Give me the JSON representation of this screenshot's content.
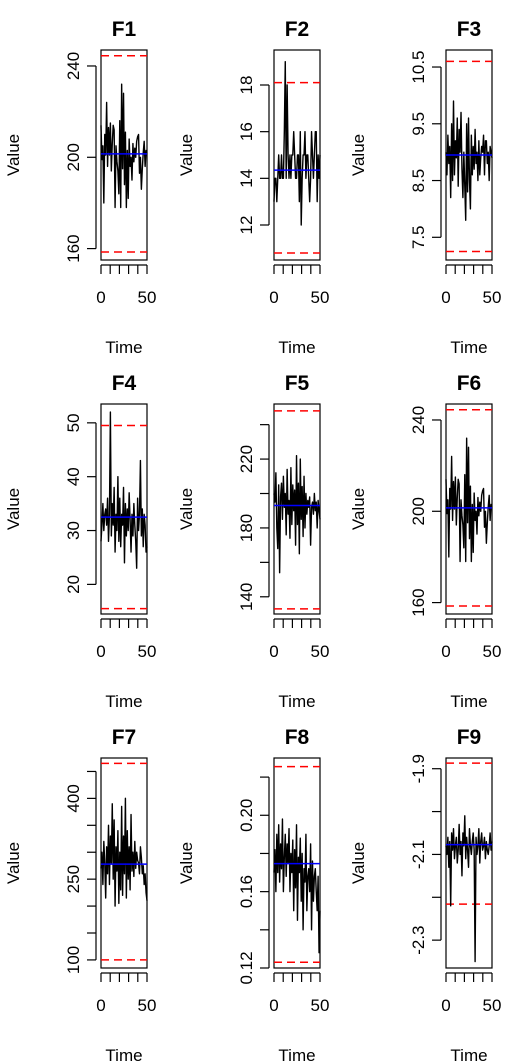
{
  "chart_data": [
    {
      "type": "line",
      "title": "F1",
      "xlabel": "Time",
      "ylabel": "Value",
      "xticks": [
        0,
        50
      ],
      "xminor": [
        10,
        20,
        30,
        40
      ],
      "xlim": [
        0,
        50
      ],
      "yticks": [
        160,
        200,
        240
      ],
      "ylim": [
        155,
        247
      ],
      "center": 201.5,
      "ucl": 244.5,
      "lcl": 158.5,
      "values": [
        214,
        199,
        205,
        180,
        210,
        201,
        224,
        196,
        213,
        201,
        215,
        194,
        206,
        214,
        212,
        178,
        205,
        198,
        194,
        184,
        216,
        178,
        232,
        195,
        228,
        188,
        211,
        178,
        203,
        182,
        208,
        196,
        200,
        190,
        206,
        198,
        204,
        200,
        207,
        209,
        210,
        193,
        200,
        186,
        195,
        202,
        207,
        196,
        203,
        202
      ]
    },
    {
      "type": "line",
      "title": "F2",
      "xlabel": "Time",
      "ylabel": "Value",
      "xticks": [
        0,
        50
      ],
      "xminor": [
        10,
        20,
        30,
        40
      ],
      "xlim": [
        0,
        50
      ],
      "yticks": [
        12,
        14,
        16,
        18
      ],
      "ylim": [
        10.5,
        19.5
      ],
      "center": 14.35,
      "ucl": 18.1,
      "lcl": 10.8,
      "values": [
        13,
        14,
        14,
        13,
        14,
        15,
        14,
        14,
        15,
        14,
        14,
        16,
        19,
        14,
        18,
        15,
        14,
        15,
        14,
        15,
        15,
        16,
        15,
        14,
        14,
        15,
        15,
        13,
        16,
        12,
        14,
        15,
        15,
        16,
        14,
        15,
        15,
        14,
        13,
        14,
        16,
        15,
        14,
        15,
        16,
        16,
        13,
        15,
        14,
        15
      ]
    },
    {
      "type": "line",
      "title": "F3",
      "xlabel": "Time",
      "ylabel": "Value",
      "xticks": [
        0,
        50
      ],
      "xminor": [
        10,
        20,
        30,
        40
      ],
      "xlim": [
        0,
        50
      ],
      "yticks": [
        7.5,
        8.5,
        9.5,
        10.5
      ],
      "yticklabels": [
        "7.5",
        "8.5",
        "9.5",
        "10.5"
      ],
      "ylim": [
        7.1,
        10.8
      ],
      "center": 8.95,
      "ucl": 10.6,
      "lcl": 7.25,
      "values": [
        9.0,
        8.6,
        9.3,
        8.8,
        9.1,
        8.2,
        9.5,
        8.5,
        9.9,
        8.6,
        9.2,
        8.9,
        9.6,
        8.4,
        9.4,
        9.0,
        9.7,
        8.7,
        8.2,
        9.0,
        8.4,
        7.8,
        9.5,
        8.3,
        9.6,
        8.5,
        8.0,
        9.3,
        8.6,
        9.1,
        8.7,
        9.4,
        8.8,
        9.0,
        8.5,
        9.2,
        8.6,
        8.9,
        9.1,
        9.0,
        9.3,
        8.6,
        9.2,
        9.2,
        8.8,
        9.0,
        8.5,
        9.1,
        9.0,
        8.9
      ]
    },
    {
      "type": "line",
      "title": "F4",
      "xlabel": "Time",
      "ylabel": "Value",
      "xticks": [
        0,
        50
      ],
      "xminor": [
        10,
        20,
        30,
        40
      ],
      "xlim": [
        0,
        50
      ],
      "yticks": [
        20,
        30,
        40,
        50
      ],
      "ylim": [
        14.5,
        53.5
      ],
      "center": 32.5,
      "ucl": 49.5,
      "lcl": 15.5,
      "values": [
        28,
        31,
        35,
        30,
        33,
        34,
        31,
        36,
        28,
        33,
        52,
        29,
        35,
        31,
        38,
        26,
        33,
        30,
        40,
        28,
        36,
        27,
        33,
        31,
        38,
        24,
        35,
        29,
        34,
        30,
        37,
        32,
        26,
        33,
        29,
        35,
        31,
        28,
        23,
        36,
        30,
        33,
        43,
        29,
        34,
        27,
        33,
        31,
        26,
        27
      ]
    },
    {
      "type": "line",
      "title": "F5",
      "xlabel": "Time",
      "ylabel": "Value",
      "xticks": [
        0,
        50
      ],
      "xminor": [
        10,
        20,
        30,
        40
      ],
      "xlim": [
        0,
        50
      ],
      "yticks": [
        140,
        180,
        220
      ],
      "yminor": [
        160,
        200,
        240
      ],
      "ylim": [
        130,
        252
      ],
      "center": 193,
      "ucl": 248,
      "lcl": 133,
      "values": [
        200,
        195,
        212,
        180,
        168,
        205,
        154,
        198,
        206,
        185,
        210,
        192,
        200,
        176,
        214,
        188,
        196,
        174,
        215,
        182,
        205,
        190,
        202,
        170,
        222,
        182,
        206,
        165,
        220,
        185,
        204,
        175,
        210,
        180,
        200,
        188,
        196,
        192,
        198,
        170,
        192,
        195,
        188,
        200,
        190,
        195,
        180,
        196,
        190,
        185
      ]
    },
    {
      "type": "line",
      "title": "F6",
      "xlabel": "Time",
      "ylabel": "Value",
      "xticks": [
        0,
        50
      ],
      "xminor": [
        10,
        20,
        30,
        40
      ],
      "xlim": [
        0,
        50
      ],
      "yticks": [
        160,
        200,
        240
      ],
      "ylim": [
        155,
        247
      ],
      "center": 201.5,
      "ucl": 244.5,
      "lcl": 158.5,
      "values": [
        214,
        199,
        205,
        180,
        210,
        201,
        224,
        196,
        213,
        201,
        215,
        194,
        206,
        214,
        212,
        178,
        205,
        198,
        194,
        184,
        216,
        178,
        232,
        195,
        228,
        188,
        211,
        178,
        203,
        182,
        208,
        196,
        200,
        190,
        206,
        198,
        204,
        200,
        207,
        209,
        210,
        193,
        200,
        186,
        195,
        202,
        207,
        196,
        203,
        202
      ]
    },
    {
      "type": "line",
      "title": "F7",
      "xlabel": "Time",
      "ylabel": "Value",
      "xticks": [
        0,
        50
      ],
      "xminor": [
        10,
        20,
        30,
        40
      ],
      "xlim": [
        0,
        50
      ],
      "yticks": [
        100,
        250,
        400
      ],
      "yminor": [
        150,
        200,
        300,
        350,
        450
      ],
      "ylim": [
        85,
        475
      ],
      "center": 278,
      "ucl": 465,
      "lcl": 100,
      "values": [
        270,
        300,
        240,
        320,
        280,
        215,
        310,
        260,
        350,
        240,
        330,
        280,
        390,
        250,
        360,
        200,
        310,
        265,
        340,
        205,
        300,
        230,
        385,
        220,
        330,
        260,
        400,
        215,
        340,
        250,
        310,
        230,
        370,
        265,
        300,
        255,
        320,
        270,
        300,
        285,
        280,
        260,
        310,
        290,
        260,
        275,
        240,
        260,
        225,
        210
      ]
    },
    {
      "type": "line",
      "title": "F8",
      "xlabel": "Time",
      "ylabel": "Value",
      "xticks": [
        0,
        50
      ],
      "xminor": [
        10,
        20,
        30,
        40
      ],
      "xlim": [
        0,
        50
      ],
      "yticks": [
        0.12,
        0.16,
        0.2
      ],
      "yticklabels": [
        "0.12",
        "0.16",
        "0.20"
      ],
      "yminor": [
        0.14,
        0.18,
        0.22
      ],
      "ylim": [
        0.12,
        0.23
      ],
      "center": 0.1747,
      "ucl": 0.2255,
      "lcl": 0.123,
      "values": [
        0.17,
        0.182,
        0.16,
        0.19,
        0.17,
        0.195,
        0.165,
        0.185,
        0.172,
        0.198,
        0.16,
        0.178,
        0.19,
        0.168,
        0.185,
        0.175,
        0.193,
        0.16,
        0.18,
        0.17,
        0.187,
        0.15,
        0.182,
        0.162,
        0.195,
        0.145,
        0.178,
        0.17,
        0.188,
        0.155,
        0.18,
        0.14,
        0.172,
        0.165,
        0.19,
        0.15,
        0.168,
        0.172,
        0.16,
        0.185,
        0.14,
        0.176,
        0.155,
        0.168,
        0.172,
        0.16,
        0.15,
        0.168,
        0.128,
        0.15
      ]
    },
    {
      "type": "line",
      "title": "F9",
      "xlabel": "Time",
      "ylabel": "Value",
      "xticks": [
        0,
        50
      ],
      "xminor": [
        10,
        20,
        30,
        40
      ],
      "xlim": [
        0,
        50
      ],
      "yticks": [
        -2.3,
        -2.1,
        -1.9
      ],
      "yminor": [
        -2.2,
        -2.0
      ],
      "ylim": [
        -2.365,
        -1.875
      ],
      "center": -2.077,
      "ucl": -1.887,
      "lcl": -2.216,
      "values": [
        -2.08,
        -2.1,
        -2.06,
        -2.13,
        -2.07,
        -2.22,
        -2.05,
        -2.09,
        -2.04,
        -2.11,
        -2.08,
        -2.06,
        -2.12,
        -2.09,
        -2.03,
        -2.1,
        -2.07,
        -2.15,
        -2.05,
        -2.08,
        -2.01,
        -2.11,
        -2.06,
        -2.09,
        -2.13,
        -2.04,
        -2.08,
        -2.1,
        -2.07,
        -2.05,
        -2.09,
        -2.35,
        -2.06,
        -2.1,
        -2.08,
        -2.04,
        -2.12,
        -2.07,
        -2.05,
        -2.09,
        -2.08,
        -2.06,
        -2.11,
        -2.07,
        -2.09,
        -2.1,
        -2.08,
        -2.05,
        -2.09,
        -2.07
      ]
    }
  ]
}
